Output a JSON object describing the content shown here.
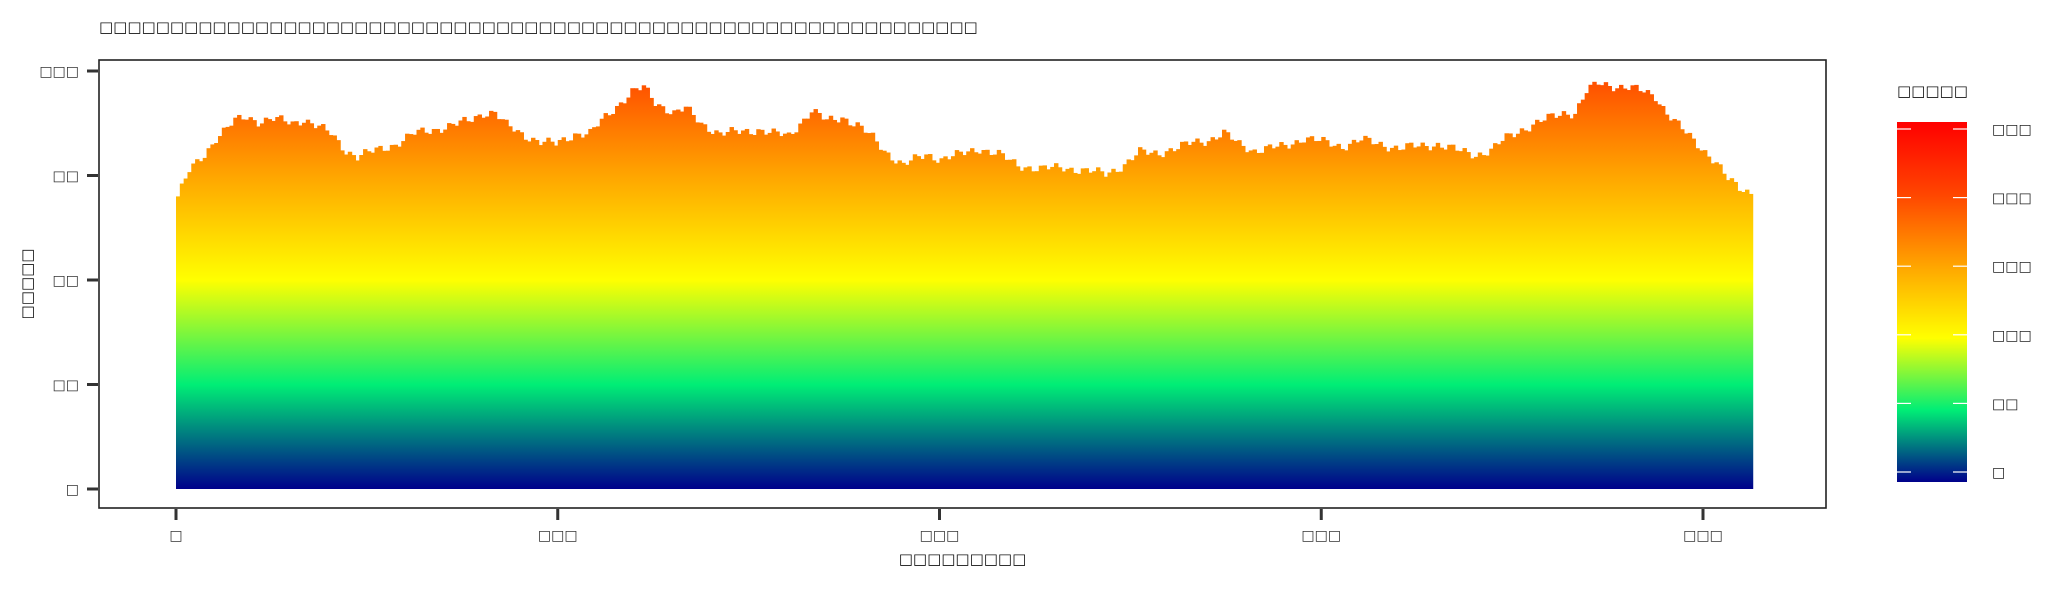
{
  "chart_data": {
    "type": "bar",
    "title": "□□□□□□□□□□□□□□□□□□□□□□□□□□□□□□□□□□□□□□□□□□□□□□□□□□□□□□□□□□□□□□",
    "xlabel": "□□□□□□□□□",
    "ylabel": "□□□□□",
    "xlim": [
      0,
      412
    ],
    "ylim": [
      0,
      200
    ],
    "x_ticks": [
      0,
      100,
      200,
      300,
      400
    ],
    "x_tick_labels": [
      "□",
      "□□□",
      "□□□",
      "□□□",
      "□□□"
    ],
    "y_ticks": [
      0,
      50,
      100,
      150,
      200
    ],
    "y_tick_labels": [
      "□",
      "□□",
      "□□",
      "□□",
      "□□□"
    ],
    "grid": false,
    "colorbar": {
      "title": "□□□□□",
      "range": [
        0,
        250
      ],
      "ticks": [
        0,
        50,
        100,
        150,
        200,
        250
      ],
      "tick_labels": [
        "□",
        "□□",
        "□□□",
        "□□□",
        "□□□",
        "□□□"
      ],
      "colors": [
        {
          "value": 0,
          "color": "#00008b"
        },
        {
          "value": 50,
          "color": "#00ee76"
        },
        {
          "value": 100,
          "color": "#ffff00"
        },
        {
          "value": 150,
          "color": "#ffa500"
        },
        {
          "value": 200,
          "color": "#ff4500"
        },
        {
          "value": 250,
          "color": "#ff0000"
        }
      ],
      "placement": "right"
    },
    "profile_points": [
      {
        "x": 0,
        "y": 140
      },
      {
        "x": 3,
        "y": 152
      },
      {
        "x": 7,
        "y": 160
      },
      {
        "x": 10,
        "y": 168
      },
      {
        "x": 15,
        "y": 176
      },
      {
        "x": 18,
        "y": 178
      },
      {
        "x": 21,
        "y": 176
      },
      {
        "x": 25,
        "y": 177
      },
      {
        "x": 30,
        "y": 175
      },
      {
        "x": 33,
        "y": 177
      },
      {
        "x": 36,
        "y": 174
      },
      {
        "x": 40,
        "y": 170
      },
      {
        "x": 44,
        "y": 162
      },
      {
        "x": 47,
        "y": 159
      },
      {
        "x": 52,
        "y": 162
      },
      {
        "x": 57,
        "y": 165
      },
      {
        "x": 62,
        "y": 170
      },
      {
        "x": 67,
        "y": 172
      },
      {
        "x": 72,
        "y": 174
      },
      {
        "x": 76,
        "y": 176
      },
      {
        "x": 80,
        "y": 180
      },
      {
        "x": 83,
        "y": 180
      },
      {
        "x": 86,
        "y": 174
      },
      {
        "x": 90,
        "y": 170
      },
      {
        "x": 95,
        "y": 166
      },
      {
        "x": 99,
        "y": 165
      },
      {
        "x": 104,
        "y": 170
      },
      {
        "x": 108,
        "y": 170
      },
      {
        "x": 112,
        "y": 178
      },
      {
        "x": 116,
        "y": 185
      },
      {
        "x": 119,
        "y": 190
      },
      {
        "x": 122,
        "y": 192
      },
      {
        "x": 125,
        "y": 185
      },
      {
        "x": 130,
        "y": 180
      },
      {
        "x": 133,
        "y": 182
      },
      {
        "x": 137,
        "y": 175
      },
      {
        "x": 142,
        "y": 170
      },
      {
        "x": 148,
        "y": 171
      },
      {
        "x": 152,
        "y": 172
      },
      {
        "x": 156,
        "y": 170
      },
      {
        "x": 160,
        "y": 169
      },
      {
        "x": 163,
        "y": 175
      },
      {
        "x": 166,
        "y": 181
      },
      {
        "x": 170,
        "y": 176
      },
      {
        "x": 174,
        "y": 178
      },
      {
        "x": 178,
        "y": 174
      },
      {
        "x": 182,
        "y": 168
      },
      {
        "x": 185,
        "y": 162
      },
      {
        "x": 190,
        "y": 155
      },
      {
        "x": 196,
        "y": 160
      },
      {
        "x": 200,
        "y": 158
      },
      {
        "x": 205,
        "y": 160
      },
      {
        "x": 210,
        "y": 163
      },
      {
        "x": 215,
        "y": 160
      },
      {
        "x": 220,
        "y": 155
      },
      {
        "x": 226,
        "y": 153
      },
      {
        "x": 232,
        "y": 154
      },
      {
        "x": 238,
        "y": 152
      },
      {
        "x": 243,
        "y": 151
      },
      {
        "x": 248,
        "y": 155
      },
      {
        "x": 252,
        "y": 161
      },
      {
        "x": 257,
        "y": 161
      },
      {
        "x": 262,
        "y": 163
      },
      {
        "x": 266,
        "y": 166
      },
      {
        "x": 270,
        "y": 167
      },
      {
        "x": 274,
        "y": 170
      },
      {
        "x": 278,
        "y": 165
      },
      {
        "x": 282,
        "y": 162
      },
      {
        "x": 286,
        "y": 163
      },
      {
        "x": 290,
        "y": 164
      },
      {
        "x": 295,
        "y": 168
      },
      {
        "x": 300,
        "y": 166
      },
      {
        "x": 305,
        "y": 164
      },
      {
        "x": 310,
        "y": 167
      },
      {
        "x": 315,
        "y": 165
      },
      {
        "x": 320,
        "y": 163
      },
      {
        "x": 325,
        "y": 164
      },
      {
        "x": 330,
        "y": 165
      },
      {
        "x": 335,
        "y": 162
      },
      {
        "x": 340,
        "y": 160
      },
      {
        "x": 344,
        "y": 162
      },
      {
        "x": 348,
        "y": 168
      },
      {
        "x": 352,
        "y": 172
      },
      {
        "x": 356,
        "y": 175
      },
      {
        "x": 360,
        "y": 178
      },
      {
        "x": 363,
        "y": 180
      },
      {
        "x": 366,
        "y": 180
      },
      {
        "x": 369,
        "y": 190
      },
      {
        "x": 372,
        "y": 194
      },
      {
        "x": 376,
        "y": 193
      },
      {
        "x": 380,
        "y": 192
      },
      {
        "x": 384,
        "y": 190
      },
      {
        "x": 387,
        "y": 188
      },
      {
        "x": 390,
        "y": 180
      },
      {
        "x": 394,
        "y": 172
      },
      {
        "x": 398,
        "y": 165
      },
      {
        "x": 401,
        "y": 160
      },
      {
        "x": 403,
        "y": 156
      },
      {
        "x": 406,
        "y": 148
      },
      {
        "x": 409,
        "y": 144
      },
      {
        "x": 412,
        "y": 142
      }
    ]
  }
}
